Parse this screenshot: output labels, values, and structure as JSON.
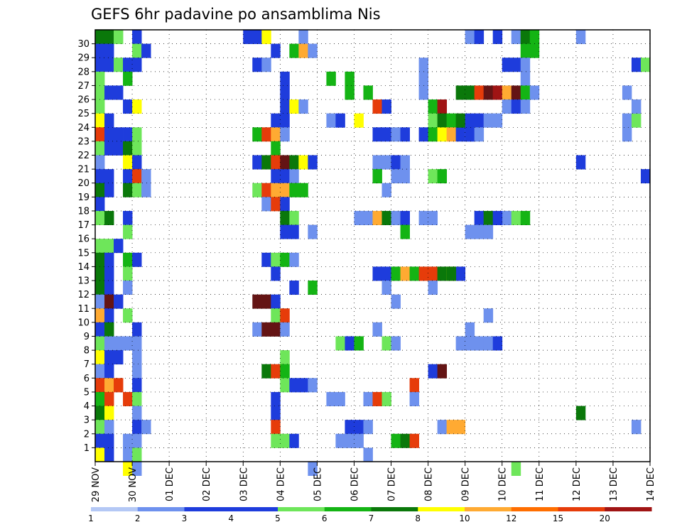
{
  "chart_data": {
    "type": "heatmap",
    "title": "GEFS 6hr padavine po ansamblima Nis",
    "x_tick_labels": [
      "29 NOV",
      "30 NOV",
      "01 DEC",
      "02 DEC",
      "03 DEC",
      "04 DEC",
      "05 DEC",
      "06 DEC",
      "07 DEC",
      "08 DEC",
      "09 DEC",
      "10 DEC",
      "11 DEC",
      "12 DEC",
      "13 DEC",
      "14 DEC"
    ],
    "y_tick_labels": [
      "1",
      "2",
      "3",
      "4",
      "5",
      "6",
      "7",
      "8",
      "9",
      "10",
      "11",
      "12",
      "13",
      "14",
      "15",
      "16",
      "17",
      "18",
      "19",
      "20",
      "21",
      "22",
      "23",
      "24",
      "25",
      "26",
      "27",
      "28",
      "29",
      "30"
    ],
    "x_range": [
      0,
      60
    ],
    "y_range": [
      0,
      31
    ],
    "grid": true,
    "levels": [
      1,
      2,
      3,
      4,
      5,
      6,
      7,
      8,
      10,
      12,
      15,
      20
    ],
    "level_colors": [
      "#b4c8f5",
      "#6e91ee",
      "#1e3cdc",
      "#1e3cdc",
      "#6ee65a",
      "#14b414",
      "#0a780a",
      "#ffff00",
      "#ffaa32",
      "#ff6e00",
      "#e63c0a",
      "#a01414",
      "#641414"
    ],
    "colorbar_labels": [
      "1",
      "2",
      "3",
      "4",
      "5",
      "6",
      "7",
      "8",
      "10",
      "12",
      "15",
      "20"
    ],
    "cells": [
      [
        0,
        30,
        6
      ],
      [
        0,
        30,
        6
      ],
      [
        1,
        30,
        6
      ],
      [
        2,
        30,
        4
      ],
      [
        4,
        30,
        3
      ],
      [
        0,
        29,
        3
      ],
      [
        1,
        29,
        3
      ],
      [
        4,
        29,
        4
      ],
      [
        5,
        29,
        2
      ],
      [
        0,
        28,
        2
      ],
      [
        1,
        28,
        3
      ],
      [
        2,
        28,
        4
      ],
      [
        3,
        28,
        3
      ],
      [
        4,
        28,
        2
      ],
      [
        0,
        27,
        4
      ],
      [
        3,
        27,
        5
      ],
      [
        0,
        26,
        4
      ],
      [
        1,
        26,
        3
      ],
      [
        2,
        26,
        3
      ],
      [
        0,
        25,
        4
      ],
      [
        3,
        25,
        2
      ],
      [
        4,
        25,
        7
      ],
      [
        0,
        24,
        7
      ],
      [
        1,
        24,
        3
      ],
      [
        0,
        23,
        10
      ],
      [
        1,
        23,
        2
      ],
      [
        2,
        23,
        3
      ],
      [
        3,
        23,
        2
      ],
      [
        4,
        23,
        4
      ],
      [
        0,
        22,
        4
      ],
      [
        1,
        22,
        3
      ],
      [
        2,
        22,
        3
      ],
      [
        3,
        22,
        6
      ],
      [
        4,
        22,
        4
      ],
      [
        0,
        21,
        1
      ],
      [
        3,
        21,
        7
      ],
      [
        4,
        21,
        3
      ],
      [
        0,
        20,
        3
      ],
      [
        1,
        20,
        2
      ],
      [
        3,
        20,
        3
      ],
      [
        4,
        20,
        10
      ],
      [
        5,
        20,
        1
      ],
      [
        0,
        19,
        6
      ],
      [
        1,
        19,
        3
      ],
      [
        3,
        19,
        6
      ],
      [
        4,
        19,
        4
      ],
      [
        5,
        19,
        1
      ],
      [
        0,
        18,
        3
      ],
      [
        0,
        17,
        4
      ],
      [
        1,
        17,
        6
      ],
      [
        3,
        17,
        2
      ],
      [
        3,
        16,
        4
      ],
      [
        0,
        15,
        4
      ],
      [
        1,
        15,
        4
      ],
      [
        2,
        15,
        3
      ],
      [
        0,
        14,
        6
      ],
      [
        1,
        14,
        3
      ],
      [
        3,
        14,
        5
      ],
      [
        4,
        14,
        2
      ],
      [
        0,
        13,
        6
      ],
      [
        1,
        13,
        3
      ],
      [
        3,
        13,
        4
      ],
      [
        0,
        12,
        6
      ],
      [
        1,
        12,
        3
      ],
      [
        3,
        12,
        1
      ],
      [
        0,
        11,
        1
      ],
      [
        1,
        11,
        12
      ],
      [
        2,
        11,
        3
      ],
      [
        0,
        10,
        8
      ],
      [
        1,
        10,
        2
      ],
      [
        3,
        10,
        4
      ],
      [
        0,
        9,
        3
      ],
      [
        1,
        9,
        6
      ],
      [
        4,
        9,
        3
      ],
      [
        0,
        8,
        4
      ],
      [
        1,
        8,
        1
      ],
      [
        2,
        8,
        1
      ],
      [
        3,
        8,
        1
      ],
      [
        4,
        8,
        1
      ],
      [
        0,
        7,
        7
      ],
      [
        1,
        7,
        3
      ],
      [
        2,
        7,
        2
      ],
      [
        4,
        7,
        1
      ],
      [
        0,
        6,
        1
      ],
      [
        1,
        6,
        2
      ],
      [
        4,
        6,
        1
      ],
      [
        0,
        5,
        10
      ],
      [
        1,
        5,
        8
      ],
      [
        2,
        5,
        10
      ],
      [
        4,
        5,
        2
      ],
      [
        0,
        4,
        5
      ],
      [
        1,
        4,
        10
      ],
      [
        3,
        4,
        10
      ],
      [
        4,
        4,
        4
      ],
      [
        0,
        3,
        6
      ],
      [
        1,
        3,
        7
      ],
      [
        4,
        3,
        1
      ],
      [
        0,
        2,
        4
      ],
      [
        1,
        2,
        1
      ],
      [
        4,
        2,
        2
      ],
      [
        5,
        2,
        1
      ],
      [
        0,
        1,
        3
      ],
      [
        1,
        1,
        2
      ],
      [
        3,
        1,
        1
      ],
      [
        4,
        1,
        1
      ],
      [
        0,
        0,
        7
      ],
      [
        1,
        0,
        3
      ],
      [
        3,
        0,
        1
      ],
      [
        4,
        0,
        4
      ],
      [
        3,
        -1,
        7
      ],
      [
        4,
        -1,
        1
      ],
      [
        16,
        30,
        2
      ],
      [
        17,
        30,
        2
      ],
      [
        18,
        30,
        7
      ],
      [
        22,
        30,
        1
      ],
      [
        19,
        29,
        2
      ],
      [
        21,
        29,
        5
      ],
      [
        22,
        29,
        8
      ],
      [
        23,
        29,
        1
      ],
      [
        17,
        28,
        2
      ],
      [
        18,
        28,
        1
      ],
      [
        20,
        27,
        3
      ],
      [
        20,
        26,
        3
      ],
      [
        20,
        25,
        2
      ],
      [
        21,
        25,
        7
      ],
      [
        22,
        25,
        1
      ],
      [
        19,
        24,
        2
      ],
      [
        20,
        24,
        3
      ],
      [
        17,
        23,
        5
      ],
      [
        18,
        23,
        10
      ],
      [
        19,
        23,
        8
      ],
      [
        20,
        23,
        1
      ],
      [
        19,
        22,
        5
      ],
      [
        17,
        21,
        3
      ],
      [
        18,
        21,
        6
      ],
      [
        19,
        21,
        10
      ],
      [
        20,
        21,
        12
      ],
      [
        21,
        21,
        6
      ],
      [
        22,
        21,
        7
      ],
      [
        23,
        21,
        3
      ],
      [
        19,
        20,
        2
      ],
      [
        20,
        20,
        3
      ],
      [
        21,
        20,
        1
      ],
      [
        17,
        19,
        4
      ],
      [
        18,
        19,
        10
      ],
      [
        19,
        19,
        8
      ],
      [
        20,
        19,
        8
      ],
      [
        21,
        19,
        5
      ],
      [
        22,
        19,
        5
      ],
      [
        18,
        18,
        1
      ],
      [
        19,
        18,
        10
      ],
      [
        20,
        18,
        3
      ],
      [
        20,
        17,
        6
      ],
      [
        21,
        17,
        4
      ],
      [
        20,
        16,
        2
      ],
      [
        21,
        16,
        2
      ],
      [
        23,
        16,
        1
      ],
      [
        18,
        14,
        3
      ],
      [
        19,
        14,
        4
      ],
      [
        20,
        14,
        5
      ],
      [
        21,
        14,
        1
      ],
      [
        19,
        13,
        3
      ],
      [
        21,
        12,
        3
      ],
      [
        23,
        12,
        5
      ],
      [
        17,
        11,
        15
      ],
      [
        18,
        11,
        12
      ],
      [
        19,
        11,
        3
      ],
      [
        19,
        10,
        4
      ],
      [
        20,
        10,
        10
      ],
      [
        17,
        9,
        1
      ],
      [
        18,
        9,
        15
      ],
      [
        19,
        9,
        15
      ],
      [
        20,
        9,
        1
      ],
      [
        20,
        7,
        4
      ],
      [
        18,
        6,
        6
      ],
      [
        19,
        6,
        10
      ],
      [
        20,
        6,
        5
      ],
      [
        20,
        5,
        4
      ],
      [
        21,
        5,
        3
      ],
      [
        22,
        5,
        2
      ],
      [
        23,
        5,
        1
      ],
      [
        19,
        4,
        3
      ],
      [
        19,
        3,
        2
      ],
      [
        19,
        2,
        10
      ],
      [
        19,
        1,
        4
      ],
      [
        20,
        1,
        4
      ],
      [
        21,
        1,
        2
      ],
      [
        23,
        -1,
        1
      ],
      [
        25,
        27,
        5
      ],
      [
        27,
        27,
        5
      ],
      [
        29,
        26,
        5
      ],
      [
        27,
        26,
        5
      ],
      [
        30,
        25,
        10
      ],
      [
        31,
        25,
        3
      ],
      [
        25,
        24,
        1
      ],
      [
        26,
        24,
        2
      ],
      [
        28,
        24,
        7
      ],
      [
        30,
        23,
        2
      ],
      [
        31,
        23,
        3
      ],
      [
        32,
        23,
        1
      ],
      [
        33,
        23,
        3
      ],
      [
        30,
        21,
        1
      ],
      [
        31,
        21,
        1
      ],
      [
        32,
        21,
        2
      ],
      [
        33,
        21,
        1
      ],
      [
        30,
        20,
        5
      ],
      [
        32,
        20,
        1
      ],
      [
        33,
        20,
        1
      ],
      [
        31,
        19,
        1
      ],
      [
        28,
        17,
        1
      ],
      [
        29,
        17,
        1
      ],
      [
        30,
        17,
        8
      ],
      [
        31,
        17,
        6
      ],
      [
        32,
        17,
        1
      ],
      [
        33,
        17,
        3
      ],
      [
        33,
        16,
        5
      ],
      [
        30,
        13,
        2
      ],
      [
        31,
        13,
        2
      ],
      [
        32,
        13,
        5
      ],
      [
        33,
        13,
        8
      ],
      [
        34,
        13,
        5
      ],
      [
        35,
        13,
        10
      ],
      [
        36,
        13,
        10
      ],
      [
        37,
        13,
        6
      ],
      [
        38,
        13,
        7
      ],
      [
        39,
        13,
        3
      ],
      [
        31,
        12,
        1
      ],
      [
        32,
        11,
        1
      ],
      [
        30,
        9,
        1
      ],
      [
        26,
        8,
        4
      ],
      [
        27,
        8,
        3
      ],
      [
        28,
        8,
        5
      ],
      [
        31,
        8,
        4
      ],
      [
        32,
        8,
        1
      ],
      [
        25,
        4,
        1
      ],
      [
        26,
        4,
        1
      ],
      [
        29,
        4,
        1
      ],
      [
        30,
        4,
        10
      ],
      [
        31,
        4,
        4
      ],
      [
        27,
        2,
        2
      ],
      [
        28,
        2,
        2
      ],
      [
        29,
        2,
        1
      ],
      [
        26,
        1,
        1
      ],
      [
        27,
        1,
        1
      ],
      [
        28,
        1,
        1
      ],
      [
        32,
        1,
        5
      ],
      [
        33,
        1,
        6
      ],
      [
        34,
        1,
        10
      ],
      [
        29,
        0,
        1
      ],
      [
        35,
        28,
        1
      ],
      [
        35,
        27,
        1
      ],
      [
        35,
        26,
        1
      ],
      [
        36,
        25,
        5
      ],
      [
        37,
        25,
        11
      ],
      [
        36,
        24,
        4
      ],
      [
        37,
        24,
        6
      ],
      [
        38,
        24,
        5
      ],
      [
        35,
        23,
        2
      ],
      [
        36,
        23,
        5
      ],
      [
        37,
        23,
        7
      ],
      [
        38,
        23,
        8
      ],
      [
        39,
        23,
        3
      ],
      [
        40,
        23,
        1
      ],
      [
        36,
        20,
        4
      ],
      [
        37,
        20,
        5
      ],
      [
        35,
        17,
        1
      ],
      [
        36,
        17,
        1
      ],
      [
        38,
        13,
        6
      ],
      [
        36,
        12,
        1
      ],
      [
        36,
        6,
        2
      ],
      [
        37,
        6,
        12
      ],
      [
        34,
        5,
        10
      ],
      [
        34,
        4,
        1
      ],
      [
        37,
        2,
        1
      ],
      [
        38,
        2,
        8
      ],
      [
        39,
        2,
        8
      ],
      [
        40,
        30,
        1
      ],
      [
        41,
        30,
        3
      ],
      [
        43,
        30,
        2
      ],
      [
        45,
        30,
        1
      ],
      [
        46,
        30,
        6
      ],
      [
        47,
        30,
        5
      ],
      [
        46,
        29,
        5
      ],
      [
        47,
        29,
        5
      ],
      [
        44,
        28,
        2
      ],
      [
        45,
        28,
        2
      ],
      [
        46,
        28,
        1
      ],
      [
        46,
        27,
        1
      ],
      [
        39,
        26,
        6
      ],
      [
        40,
        26,
        6
      ],
      [
        41,
        26,
        10
      ],
      [
        42,
        26,
        12
      ],
      [
        43,
        26,
        11
      ],
      [
        44,
        26,
        8
      ],
      [
        45,
        26,
        12
      ],
      [
        46,
        26,
        5
      ],
      [
        47,
        26,
        1
      ],
      [
        44,
        25,
        1
      ],
      [
        45,
        25,
        3
      ],
      [
        46,
        25,
        1
      ],
      [
        39,
        24,
        6
      ],
      [
        40,
        24,
        2
      ],
      [
        41,
        24,
        2
      ],
      [
        42,
        24,
        1
      ],
      [
        43,
        24,
        1
      ],
      [
        40,
        23,
        2
      ],
      [
        41,
        23,
        1
      ],
      [
        44,
        17,
        1
      ],
      [
        41,
        17,
        3
      ],
      [
        42,
        17,
        6
      ],
      [
        43,
        17,
        3
      ],
      [
        45,
        17,
        4
      ],
      [
        46,
        17,
        5
      ],
      [
        40,
        16,
        1
      ],
      [
        41,
        16,
        1
      ],
      [
        42,
        16,
        1
      ],
      [
        42,
        10,
        1
      ],
      [
        39,
        8,
        1
      ],
      [
        40,
        8,
        1
      ],
      [
        41,
        8,
        1
      ],
      [
        42,
        8,
        1
      ],
      [
        43,
        8,
        3
      ],
      [
        40,
        9,
        1
      ],
      [
        45,
        -1,
        4
      ],
      [
        52,
        30,
        1
      ],
      [
        52,
        21,
        3
      ],
      [
        52,
        3,
        6
      ],
      [
        57,
        26,
        1
      ],
      [
        57,
        24,
        1
      ],
      [
        58,
        24,
        4
      ],
      [
        57,
        23,
        1
      ],
      [
        58,
        25,
        1
      ],
      [
        58,
        28,
        2
      ],
      [
        59,
        28,
        4
      ],
      [
        59,
        20,
        3
      ],
      [
        58,
        2,
        1
      ]
    ]
  }
}
